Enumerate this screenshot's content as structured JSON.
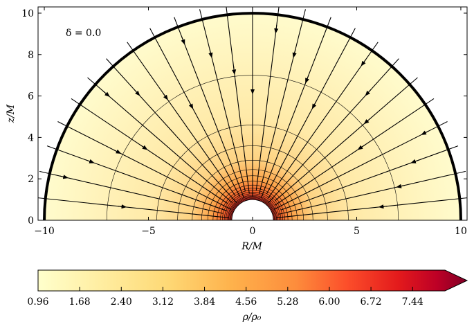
{
  "chart_data": {
    "type": "heatmap",
    "annotation": "δ = 0.0",
    "xlabel": "R/M",
    "ylabel": "z/M",
    "xlim": [
      -10.3,
      10.3
    ],
    "ylim": [
      0,
      10.3
    ],
    "xticks": [
      -10,
      -5,
      0,
      5,
      10
    ],
    "yticks": [
      0,
      2,
      4,
      6,
      8,
      10
    ],
    "outer_radius": 10,
    "inner_radius": 1,
    "colorbar": {
      "label": "ρ/ρ₀",
      "min": 0.96,
      "max": 8.0,
      "extend": "max",
      "ticks": [
        0.96,
        1.68,
        2.4,
        3.12,
        3.84,
        4.56,
        5.28,
        6.0,
        6.72,
        7.44
      ],
      "tick_labels": [
        "0.96",
        "1.68",
        "2.40",
        "3.12",
        "3.84",
        "4.56",
        "5.28",
        "6.00",
        "6.72",
        "7.44"
      ]
    },
    "density_contour_radii": [
      1.05,
      1.1,
      1.15,
      1.2,
      1.28,
      1.36,
      1.45,
      1.55,
      1.7,
      1.9,
      2.15,
      2.45,
      2.9,
      3.6,
      4.6,
      7.0
    ],
    "streamline_angles_deg": [
      6,
      13,
      20,
      27,
      34,
      41,
      48,
      55,
      62,
      69,
      76,
      83,
      90,
      97,
      104,
      111,
      118,
      125,
      132,
      139,
      146,
      153,
      160,
      167,
      174
    ]
  }
}
